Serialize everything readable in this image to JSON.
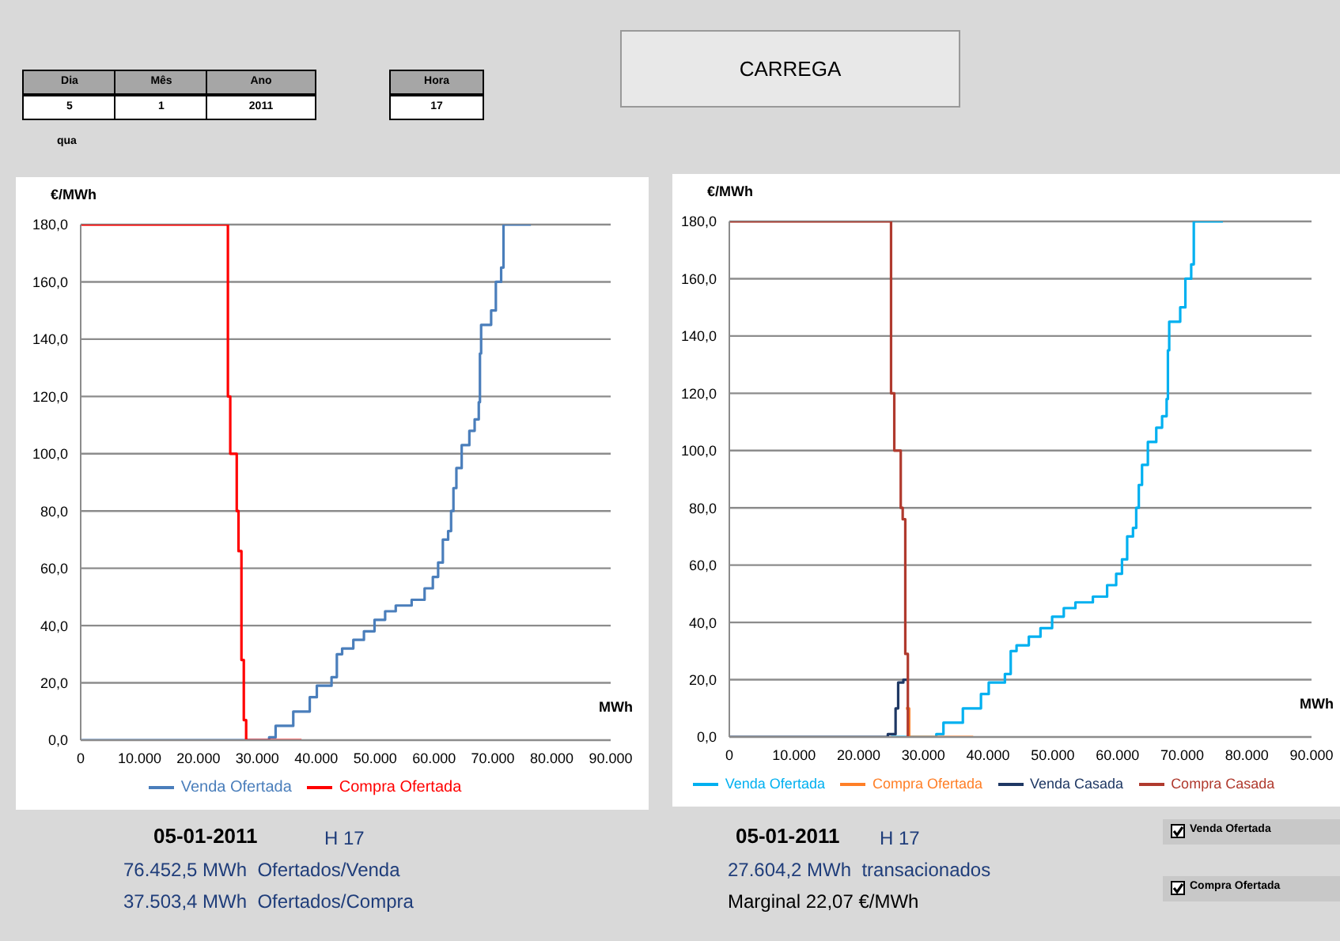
{
  "chart_data": [
    {
      "type": "other",
      "annotations": [
        "Dia",
        "Mês",
        "Ano",
        "5",
        "1",
        "2011",
        "qua",
        "Hora",
        "17",
        "CARREGA"
      ]
    },
    {
      "type": "step",
      "ylabel": "€/MWh",
      "xlabel": "MWh",
      "xlim": [
        0,
        90000
      ],
      "ylim": [
        0,
        180
      ],
      "xticks": [
        0,
        {
          "value": 10000,
          "label": "10.000"
        },
        {
          "value": 20000,
          "label": "20.000"
        },
        {
          "value": 30000,
          "label": "30.000"
        },
        {
          "value": 40000,
          "label": "40.000"
        },
        {
          "value": 50000,
          "label": "50.000"
        },
        {
          "value": 60000,
          "label": "60.000"
        },
        {
          "value": 70000,
          "label": "70.000"
        },
        {
          "value": 80000,
          "label": "80.000"
        },
        {
          "value": 90000,
          "label": "90.000"
        }
      ],
      "yticks": [
        {
          "value": 0,
          "label": "0,0"
        },
        {
          "value": 20,
          "label": "20,0"
        },
        {
          "value": 40,
          "label": "40,0"
        },
        {
          "value": 60,
          "label": "60,0"
        },
        {
          "value": 80,
          "label": "80,0"
        },
        {
          "value": 100,
          "label": "100,0"
        },
        {
          "value": 120,
          "label": "120,0"
        },
        {
          "value": 140,
          "label": "140,0"
        },
        {
          "value": 160,
          "label": "160,0"
        },
        {
          "value": 180,
          "label": "180,0"
        }
      ],
      "grid": "y",
      "legend": "bottom",
      "series": [
        {
          "name": "Venda Ofertada",
          "color": "#4a7ebb",
          "x": [
            0,
            32000,
            33100,
            36100,
            38900,
            40100,
            42600,
            43500,
            44400,
            46300,
            48100,
            49900,
            51700,
            53500,
            56200,
            58400,
            59800,
            60700,
            61500,
            62400,
            62900,
            63300,
            63800,
            64700,
            66000,
            66900,
            67600,
            67800,
            68000,
            69700,
            70500,
            71400,
            71800,
            76450
          ],
          "values": [
            0,
            1,
            5,
            10,
            15,
            19,
            22,
            30,
            32,
            35,
            38,
            42,
            45,
            47,
            49,
            53,
            57,
            62,
            70,
            73,
            80,
            88,
            95,
            103,
            108,
            112,
            118,
            135,
            145,
            150,
            160,
            165,
            180,
            180
          ]
        },
        {
          "name": "Compra Ofertada",
          "color": "#ff0000",
          "x": [
            0,
            25000,
            25400,
            26500,
            26800,
            27300,
            27700,
            28100,
            37500
          ],
          "values": [
            180,
            120,
            100,
            80,
            66,
            28,
            7,
            0,
            0
          ]
        }
      ],
      "annotations": [
        "05-01-2011",
        "H 17",
        "76.452,5 MWh  Ofertados/Venda",
        "37.503,4 MWh  Ofertados/Compra"
      ]
    },
    {
      "type": "step",
      "ylabel": "€/MWh",
      "xlabel": "MWh",
      "xlim": [
        0,
        90000
      ],
      "ylim": [
        0,
        180
      ],
      "xticks": [
        0,
        {
          "value": 10000,
          "label": "10.000"
        },
        {
          "value": 20000,
          "label": "20.000"
        },
        {
          "value": 30000,
          "label": "30.000"
        },
        {
          "value": 40000,
          "label": "40.000"
        },
        {
          "value": 50000,
          "label": "50.000"
        },
        {
          "value": 60000,
          "label": "60.000"
        },
        {
          "value": 70000,
          "label": "70.000"
        },
        {
          "value": 80000,
          "label": "80.000"
        },
        {
          "value": 90000,
          "label": "90.000"
        }
      ],
      "yticks": [
        {
          "value": 0,
          "label": "0,0"
        },
        {
          "value": 20,
          "label": "20,0"
        },
        {
          "value": 40,
          "label": "40,0"
        },
        {
          "value": 60,
          "label": "60,0"
        },
        {
          "value": 80,
          "label": "80,0"
        },
        {
          "value": 100,
          "label": "100,0"
        },
        {
          "value": 120,
          "label": "120,0"
        },
        {
          "value": 140,
          "label": "140,0"
        },
        {
          "value": 160,
          "label": "160,0"
        },
        {
          "value": 180,
          "label": "180,0"
        }
      ],
      "grid": "y",
      "legend": "bottom",
      "series": [
        {
          "name": "Venda Ofertada",
          "color": "#00b0f0",
          "x": [
            25000,
            32000,
            33100,
            36100,
            38900,
            40100,
            42600,
            43500,
            44400,
            46300,
            48100,
            49900,
            51700,
            53500,
            56200,
            58400,
            59800,
            60700,
            61500,
            62400,
            62900,
            63300,
            63800,
            64700,
            66000,
            66900,
            67600,
            67800,
            68000,
            69700,
            70500,
            71400,
            71800,
            76300
          ],
          "values": [
            0,
            1,
            5,
            10,
            15,
            19,
            22,
            30,
            32,
            35,
            38,
            42,
            45,
            47,
            49,
            53,
            57,
            62,
            70,
            73,
            80,
            88,
            95,
            103,
            108,
            112,
            118,
            135,
            145,
            150,
            160,
            165,
            180,
            180
          ]
        },
        {
          "name": "Compra Ofertada",
          "color": "#ff7f27",
          "x": [
            27300,
            27800,
            37700
          ],
          "values": [
            10,
            0,
            0
          ]
        },
        {
          "name": "Venda Casada",
          "color": "#1f3864",
          "x": [
            0,
            24500,
            25700,
            26100,
            26900,
            27400
          ],
          "values": [
            0,
            1,
            10,
            19,
            20,
            20
          ]
        },
        {
          "name": "Compra Casada",
          "color": "#b03a2e",
          "x": [
            0,
            25000,
            25500,
            26500,
            26800,
            27200,
            27600
          ],
          "values": [
            180,
            120,
            100,
            80,
            76,
            29,
            0
          ]
        }
      ],
      "annotations": [
        "05-01-2011",
        "H 17",
        "27.604,2 MWh  transacionados",
        "Marginal 22,07 €/MWh",
        "Venda Ofertada",
        "Compra Ofertada"
      ]
    }
  ]
}
